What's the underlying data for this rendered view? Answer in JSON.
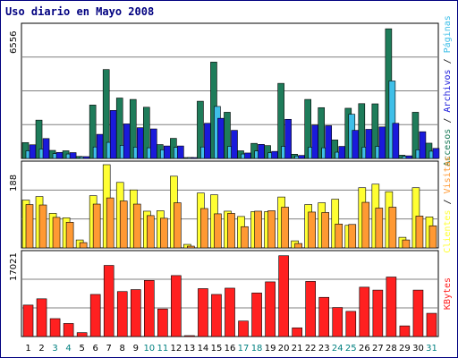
{
  "chart_data": {
    "type": "bar",
    "title": "Uso diario en Mayo 2008",
    "categories": [
      "1",
      "2",
      "3",
      "4",
      "5",
      "6",
      "7",
      "8",
      "9",
      "10",
      "11",
      "12",
      "13",
      "14",
      "15",
      "16",
      "17",
      "18",
      "19",
      "20",
      "21",
      "22",
      "23",
      "24",
      "25",
      "26",
      "27",
      "28",
      "29",
      "30",
      "31"
    ],
    "weekend_days": [
      "3",
      "4",
      "10",
      "11",
      "17",
      "18",
      "24",
      "25",
      "31"
    ],
    "panels": [
      {
        "ymax_label": "6556",
        "ymax": 6556,
        "series": [
          {
            "name": "Accesos",
            "color": "#1e7c5a",
            "values": [
              790,
              1910,
              400,
              380,
              100,
              2660,
              4430,
              3010,
              2940,
              2550,
              690,
              1000,
              10,
              2850,
              4800,
              2300,
              380,
              750,
              640,
              3740,
              210,
              2940,
              2530,
              920,
              2500,
              2730,
              2720,
              6460,
              160,
              2300,
              760
            ]
          },
          {
            "name": "Páginas",
            "color": "#3fbfe8",
            "values": [
              380,
              470,
              240,
              220,
              80,
              570,
              800,
              650,
              560,
              530,
              430,
              550,
              5,
              570,
              2590,
              600,
              220,
              370,
              280,
              600,
              120,
              560,
              530,
              310,
              2200,
              560,
              600,
              3860,
              110,
              430,
              360
            ]
          },
          {
            "name": "Archivos",
            "color": "#1a1adb",
            "values": [
              680,
              990,
              300,
              290,
              90,
              1200,
              2390,
              1720,
              1530,
              1470,
              620,
              620,
              8,
              1750,
              2000,
              1400,
              270,
              700,
              350,
              1950,
              150,
              1660,
              1630,
              600,
              1400,
              1450,
              1570,
              1750,
              130,
              1330,
              500
            ]
          }
        ],
        "right_label": [
          "Accesos",
          "Archivos",
          "Páginas"
        ]
      },
      {
        "ymax_label": "188",
        "ymax": 188,
        "series": [
          {
            "name": "Clientes",
            "color": "#ffff33",
            "values": [
              108,
              116,
              78,
              68,
              18,
              118,
              188,
              148,
              131,
              83,
              84,
              162,
              8,
              124,
              120,
              83,
              71,
              82,
              82,
              115,
              16,
              98,
              102,
              110,
              51,
              136,
              144,
              127,
              24,
              136,
              70
            ]
          },
          {
            "name": "Visitas",
            "color": "#ff9933",
            "values": [
              98,
              97,
              69,
              58,
              12,
              99,
              113,
              106,
              99,
              73,
              67,
              102,
              4,
              89,
              77,
              78,
              48,
              83,
              84,
              92,
              10,
              81,
              80,
              54,
              53,
              103,
              90,
              92,
              18,
              72,
              50
            ]
          }
        ],
        "right_label": [
          "Clientes",
          "Visitas"
        ]
      },
      {
        "ymax_label": "17021",
        "ymax": 17021,
        "series": [
          {
            "name": "KBytes",
            "color": "#ff2020",
            "values": [
              6500,
              7800,
              3700,
              2700,
              800,
              8700,
              14700,
              9300,
              9700,
              11600,
              5700,
              12600,
              100,
              9900,
              8700,
              10000,
              3200,
              9000,
              11300,
              16700,
              1800,
              11400,
              8100,
              6000,
              5200,
              10200,
              9600,
              12300,
              2200,
              9600,
              4800
            ]
          }
        ],
        "right_label": [
          "KBytes"
        ]
      }
    ],
    "colors": {
      "frame": "#000080",
      "title": "#000080",
      "grid": "#808080",
      "weekday_label": "#000000",
      "weekend_label": "#008080",
      "bar_edge": "#000000"
    }
  }
}
